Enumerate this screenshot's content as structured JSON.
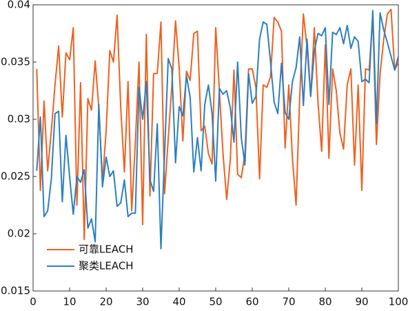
{
  "chart_data": {
    "type": "line",
    "x": [
      1,
      2,
      3,
      4,
      5,
      6,
      7,
      8,
      9,
      10,
      11,
      12,
      13,
      14,
      15,
      16,
      17,
      18,
      19,
      20,
      21,
      22,
      23,
      24,
      25,
      26,
      27,
      28,
      29,
      30,
      31,
      32,
      33,
      34,
      35,
      36,
      37,
      38,
      39,
      40,
      41,
      42,
      43,
      44,
      45,
      46,
      47,
      48,
      49,
      50,
      51,
      52,
      53,
      54,
      55,
      56,
      57,
      58,
      59,
      60,
      61,
      62,
      63,
      64,
      65,
      66,
      67,
      68,
      69,
      70,
      71,
      72,
      73,
      74,
      75,
      76,
      77,
      78,
      79,
      80,
      81,
      82,
      83,
      84,
      85,
      86,
      87,
      88,
      89,
      90,
      91,
      92,
      93,
      94,
      95,
      96,
      97,
      98,
      99,
      100
    ],
    "series": [
      {
        "name": "可靠LEACH",
        "color": "#f0601e",
        "values": [
          0.0344,
          0.0238,
          0.0316,
          0.0255,
          0.029,
          0.033,
          0.0364,
          0.0302,
          0.0358,
          0.0352,
          0.038,
          0.0225,
          0.0332,
          0.0195,
          0.0318,
          0.0308,
          0.0351,
          0.031,
          0.0245,
          0.029,
          0.036,
          0.035,
          0.0391,
          0.031,
          0.0254,
          0.0333,
          0.022,
          0.028,
          0.035,
          0.0208,
          0.0374,
          0.0233,
          0.034,
          0.034,
          0.0385,
          0.0235,
          0.0283,
          0.033,
          0.0386,
          0.0345,
          0.0281,
          0.0342,
          0.0334,
          0.0375,
          0.0377,
          0.029,
          0.0294,
          0.027,
          0.0261,
          0.038,
          0.0325,
          0.027,
          0.023,
          0.0265,
          0.0343,
          0.0252,
          0.0249,
          0.027,
          0.0344,
          0.0344,
          0.0328,
          0.0248,
          0.033,
          0.0328,
          0.0337,
          0.0389,
          0.0385,
          0.0377,
          0.0275,
          0.033,
          0.0266,
          0.0225,
          0.032,
          0.0392,
          0.0363,
          0.032,
          0.038,
          0.0315,
          0.0272,
          0.0365,
          0.0266,
          0.0344,
          0.0325,
          0.0288,
          0.0274,
          0.033,
          0.0344,
          0.026,
          0.033,
          0.0238,
          0.0344,
          0.0343,
          0.039,
          0.0278,
          0.034,
          0.037,
          0.0392,
          0.0396,
          0.0343,
          0.035
        ]
      },
      {
        "name": "聚类LEACH",
        "color": "#2a7fc1",
        "values": [
          0.0255,
          0.0302,
          0.0215,
          0.022,
          0.0248,
          0.0305,
          0.0307,
          0.0228,
          0.0286,
          0.025,
          0.0217,
          0.025,
          0.0245,
          0.0256,
          0.0205,
          0.0213,
          0.0193,
          0.0313,
          0.0241,
          0.0267,
          0.025,
          0.0255,
          0.0224,
          0.0227,
          0.0247,
          0.0215,
          0.0218,
          0.0218,
          0.0328,
          0.03,
          0.0333,
          0.0247,
          0.0237,
          0.0296,
          0.0187,
          0.027,
          0.0353,
          0.0344,
          0.0262,
          0.0311,
          0.0303,
          0.0338,
          0.0319,
          0.0254,
          0.0284,
          0.0255,
          0.0313,
          0.033,
          0.0305,
          0.0246,
          0.0327,
          0.0322,
          0.0325,
          0.031,
          0.028,
          0.035,
          0.0284,
          0.026,
          0.034,
          0.0314,
          0.032,
          0.037,
          0.0385,
          0.0383,
          0.035,
          0.0315,
          0.0305,
          0.0349,
          0.0306,
          0.03,
          0.0333,
          0.0345,
          0.0372,
          0.0312,
          0.037,
          0.032,
          0.036,
          0.0375,
          0.0373,
          0.038,
          0.0313,
          0.0376,
          0.0374,
          0.038,
          0.0366,
          0.0382,
          0.0362,
          0.0372,
          0.0368,
          0.0333,
          0.0335,
          0.0332,
          0.0395,
          0.0296,
          0.0393,
          0.0378,
          0.0367,
          0.0355,
          0.0343,
          0.0355
        ]
      }
    ],
    "xlim": [
      0,
      100
    ],
    "xticks": [
      0,
      10,
      20,
      30,
      40,
      50,
      60,
      70,
      80,
      90,
      100
    ],
    "ylim": [
      0.015,
      0.04
    ],
    "yticks": [
      0.015,
      0.02,
      0.025,
      0.03,
      0.035,
      0.04
    ],
    "grid": false,
    "legend": "lower left"
  }
}
